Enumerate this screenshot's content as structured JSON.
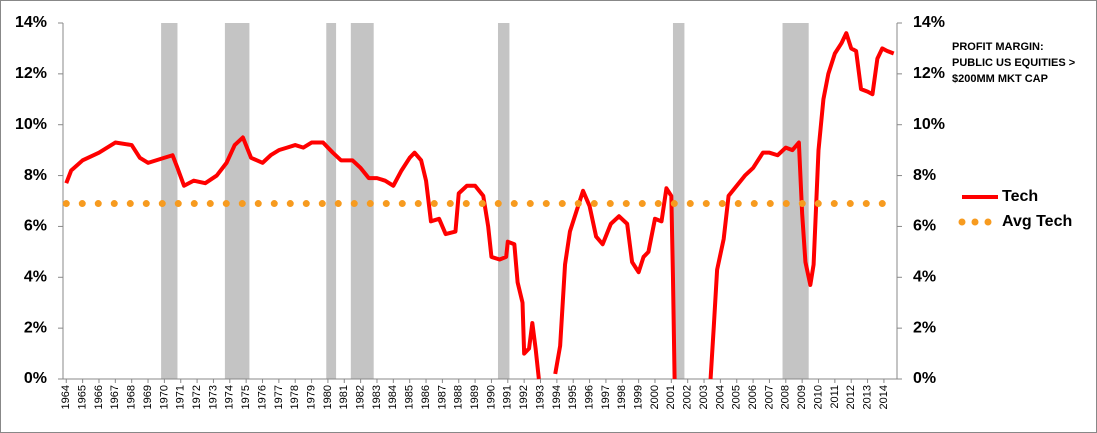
{
  "chart_data": {
    "type": "line",
    "annotation": [
      "PROFIT MARGIN:",
      "PUBLIC US EQUITIES >",
      "$200MM MKT CAP"
    ],
    "series": [
      {
        "name": "Tech",
        "color": "#ff0000",
        "style": "solid",
        "x": [
          1964,
          1964.3,
          1965,
          1966,
          1967,
          1968,
          1968.5,
          1969,
          1970,
          1970.5,
          1970.8,
          1971.2,
          1971.8,
          1972.5,
          1973.2,
          1973.8,
          1974.3,
          1974.8,
          1975.3,
          1976,
          1976.5,
          1977,
          1977.5,
          1978,
          1978.5,
          1979,
          1979.7,
          1980.3,
          1980.8,
          1981.5,
          1982,
          1982.5,
          1983,
          1983.5,
          1984,
          1984.5,
          1985,
          1985.3,
          1985.7,
          1986,
          1986.3,
          1986.8,
          1987.2,
          1987.8,
          1988,
          1988.5,
          1989,
          1989.5,
          1989.8,
          1990,
          1990.5,
          1990.9,
          1991,
          1991.4,
          1991.6,
          1991.9,
          1992,
          1992.3,
          1992.5,
          1992.7,
          1992.9,
          1993.1,
          1993.9,
          1994.2,
          1994.5,
          1994.8,
          1995.2,
          1995.6,
          1996,
          1996.4,
          1996.8,
          1997.3,
          1997.8,
          1998.3,
          1998.6,
          1999,
          1999.3,
          1999.6,
          2000,
          2000.4,
          2000.7,
          2001,
          2001.1,
          2001.2,
          2001.3,
          2003.4,
          2003.6,
          2003.8,
          2004.2,
          2004.5,
          2005,
          2005.5,
          2006,
          2006.6,
          2007,
          2007.5,
          2008,
          2008.4,
          2008.8,
          2009,
          2009.2,
          2009.5,
          2009.7,
          2010,
          2010.3,
          2010.6,
          2011,
          2011.4,
          2011.7,
          2012,
          2012.3,
          2012.6,
          2013,
          2013.3,
          2013.6,
          2013.9,
          2014.2,
          2014.6
        ],
        "values": [
          7.7,
          8.2,
          8.6,
          8.9,
          9.3,
          9.2,
          8.7,
          8.5,
          8.7,
          8.8,
          8.3,
          7.6,
          7.8,
          7.7,
          8.0,
          8.5,
          9.2,
          9.5,
          8.7,
          8.5,
          8.8,
          9.0,
          9.1,
          9.2,
          9.1,
          9.3,
          9.3,
          8.9,
          8.6,
          8.6,
          8.3,
          7.9,
          7.9,
          7.8,
          7.6,
          8.2,
          8.7,
          8.9,
          8.6,
          7.8,
          6.2,
          6.3,
          5.7,
          5.8,
          7.3,
          7.6,
          7.6,
          7.2,
          6.0,
          4.8,
          4.7,
          4.8,
          5.4,
          5.3,
          3.8,
          3.0,
          1.0,
          1.2,
          2.2,
          1.2,
          0.0,
          null,
          0.2,
          1.3,
          4.5,
          5.8,
          6.6,
          7.4,
          6.8,
          5.6,
          5.3,
          6.1,
          6.4,
          6.1,
          4.6,
          4.2,
          4.8,
          5.0,
          6.3,
          6.2,
          7.5,
          7.2,
          4.0,
          0.0,
          null,
          0.0,
          2.1,
          4.3,
          5.5,
          7.2,
          7.6,
          8.0,
          8.3,
          8.9,
          8.9,
          8.8,
          9.1,
          9.0,
          9.3,
          6.5,
          4.6,
          3.7,
          4.5,
          9.0,
          11.0,
          12.0,
          12.8,
          13.2,
          13.6,
          13.0,
          12.9,
          11.4,
          11.3,
          11.2,
          12.6,
          13.0,
          12.9,
          12.8
        ]
      },
      {
        "name": "Avg Tech",
        "color": "#f79b1f",
        "style": "dotted",
        "x": [
          1964,
          2014.6
        ],
        "values": [
          6.9,
          6.9
        ]
      }
    ],
    "recessions": [
      [
        1969.8,
        1970.8
      ],
      [
        1973.7,
        1975.2
      ],
      [
        1979.9,
        1980.5
      ],
      [
        1981.4,
        1982.8
      ],
      [
        1990.4,
        1991.1
      ],
      [
        2001.1,
        2001.8
      ],
      [
        2007.8,
        2009.4
      ]
    ],
    "recession_color": "#c4c4c4",
    "xlim": [
      1963.8,
      2014.8
    ],
    "xticks": [
      1964,
      1965,
      1966,
      1967,
      1968,
      1969,
      1970,
      1971,
      1972,
      1973,
      1974,
      1975,
      1976,
      1977,
      1978,
      1979,
      1980,
      1981,
      1982,
      1983,
      1984,
      1985,
      1986,
      1987,
      1988,
      1989,
      1990,
      1991,
      1992,
      1993,
      1994,
      1995,
      1996,
      1997,
      1998,
      1999,
      2000,
      2001,
      2002,
      2003,
      2004,
      2005,
      2006,
      2007,
      2008,
      2009,
      2010,
      2011,
      2012,
      2013,
      2014
    ],
    "ylim": [
      0,
      14
    ],
    "yticks": [
      {
        "value": 0,
        "label": "0%"
      },
      {
        "value": 2,
        "label": "2%"
      },
      {
        "value": 4,
        "label": "4%"
      },
      {
        "value": 6,
        "label": "6%"
      },
      {
        "value": 8,
        "label": "8%"
      },
      {
        "value": 10,
        "label": "10%"
      },
      {
        "value": 12,
        "label": "12%"
      },
      {
        "value": 14,
        "label": "14%"
      }
    ],
    "y2lim": [
      0,
      14
    ],
    "y2ticks": [
      {
        "value": 0,
        "label": "0%"
      },
      {
        "value": 2,
        "label": "2%"
      },
      {
        "value": 4,
        "label": "4%"
      },
      {
        "value": 6,
        "label": "6%"
      },
      {
        "value": 8,
        "label": "8%"
      },
      {
        "value": 10,
        "label": "10%"
      },
      {
        "value": 12,
        "label": "12%"
      },
      {
        "value": 14,
        "label": "14%"
      }
    ],
    "grid": false,
    "legend": "right"
  }
}
